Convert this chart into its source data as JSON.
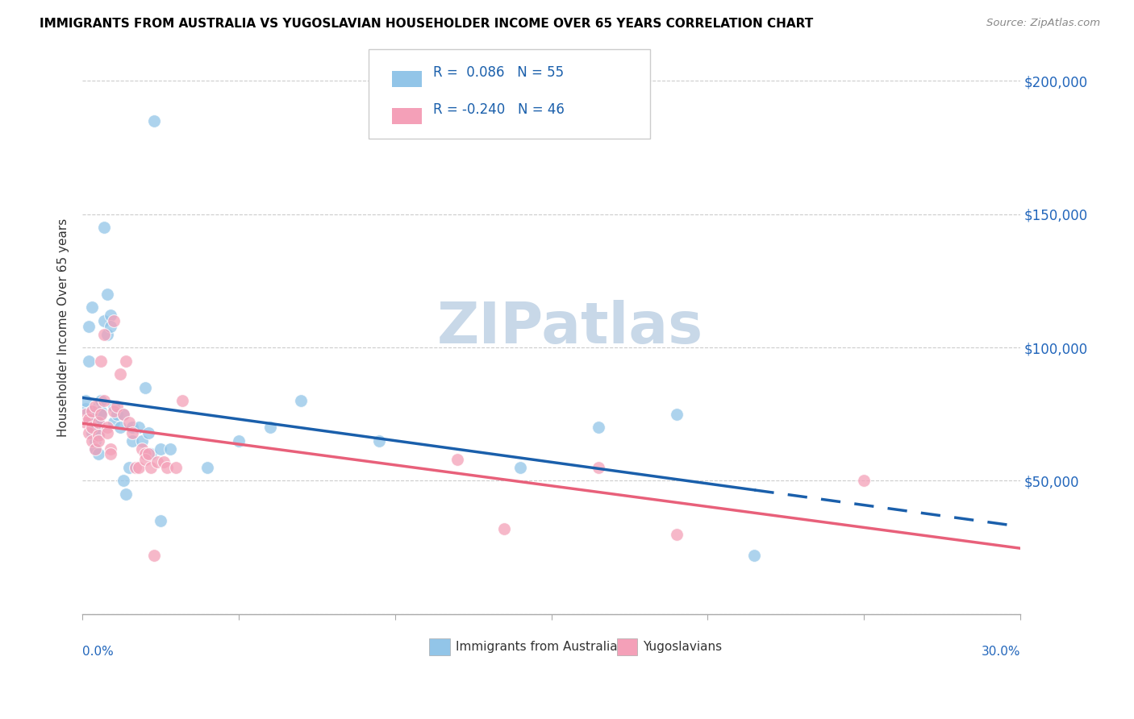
{
  "title": "IMMIGRANTS FROM AUSTRALIA VS YUGOSLAVIAN HOUSEHOLDER INCOME OVER 65 YEARS CORRELATION CHART",
  "source": "Source: ZipAtlas.com",
  "ylabel": "Householder Income Over 65 years",
  "legend_australia": "Immigrants from Australia",
  "legend_yugoslavians": "Yugoslavians",
  "R_australia": 0.086,
  "N_australia": 55,
  "R_yugoslavia": -0.24,
  "N_yugoslavia": 46,
  "color_australia": "#92C5E8",
  "color_yugoslavia": "#F4A0B8",
  "color_line_australia": "#1A5FAB",
  "color_line_yugoslavia": "#E8607A",
  "watermark_color": "#C8D8E8",
  "xlim": [
    0.0,
    0.3
  ],
  "ylim": [
    0,
    215000
  ],
  "yticks": [
    0,
    50000,
    100000,
    150000,
    200000
  ],
  "ytick_labels": [
    "",
    "$50,000",
    "$100,000",
    "$150,000",
    "$200,000"
  ],
  "aus_x": [
    0.001,
    0.001,
    0.002,
    0.002,
    0.003,
    0.003,
    0.003,
    0.003,
    0.003,
    0.004,
    0.004,
    0.004,
    0.004,
    0.004,
    0.005,
    0.005,
    0.005,
    0.005,
    0.006,
    0.006,
    0.006,
    0.007,
    0.007,
    0.008,
    0.008,
    0.009,
    0.009,
    0.01,
    0.01,
    0.011,
    0.012,
    0.013,
    0.013,
    0.014,
    0.015,
    0.016,
    0.016,
    0.018,
    0.019,
    0.02,
    0.021,
    0.022,
    0.023,
    0.025,
    0.025,
    0.028,
    0.04,
    0.05,
    0.06,
    0.07,
    0.095,
    0.14,
    0.165,
    0.19,
    0.215
  ],
  "aus_y": [
    77000,
    80000,
    108000,
    95000,
    68000,
    75000,
    73000,
    76000,
    115000,
    72000,
    70000,
    65000,
    75000,
    62000,
    78000,
    72000,
    68000,
    60000,
    80000,
    76000,
    75000,
    145000,
    110000,
    120000,
    105000,
    112000,
    108000,
    78000,
    72000,
    75000,
    70000,
    75000,
    50000,
    45000,
    55000,
    70000,
    65000,
    70000,
    65000,
    85000,
    68000,
    60000,
    185000,
    62000,
    35000,
    62000,
    55000,
    65000,
    70000,
    80000,
    65000,
    55000,
    70000,
    75000,
    22000
  ],
  "yug_x": [
    0.001,
    0.001,
    0.002,
    0.002,
    0.003,
    0.003,
    0.003,
    0.004,
    0.004,
    0.005,
    0.005,
    0.005,
    0.006,
    0.006,
    0.007,
    0.007,
    0.008,
    0.008,
    0.009,
    0.009,
    0.01,
    0.01,
    0.011,
    0.012,
    0.013,
    0.014,
    0.015,
    0.016,
    0.017,
    0.018,
    0.019,
    0.02,
    0.02,
    0.021,
    0.022,
    0.023,
    0.024,
    0.026,
    0.027,
    0.03,
    0.032,
    0.12,
    0.135,
    0.165,
    0.19,
    0.25
  ],
  "yug_y": [
    75000,
    72000,
    73000,
    68000,
    70000,
    65000,
    76000,
    62000,
    78000,
    72000,
    67000,
    65000,
    95000,
    75000,
    105000,
    80000,
    70000,
    68000,
    62000,
    60000,
    110000,
    76000,
    78000,
    90000,
    75000,
    95000,
    72000,
    68000,
    55000,
    55000,
    62000,
    60000,
    58000,
    60000,
    55000,
    22000,
    57000,
    57000,
    55000,
    55000,
    80000,
    58000,
    32000,
    55000,
    30000,
    50000
  ]
}
